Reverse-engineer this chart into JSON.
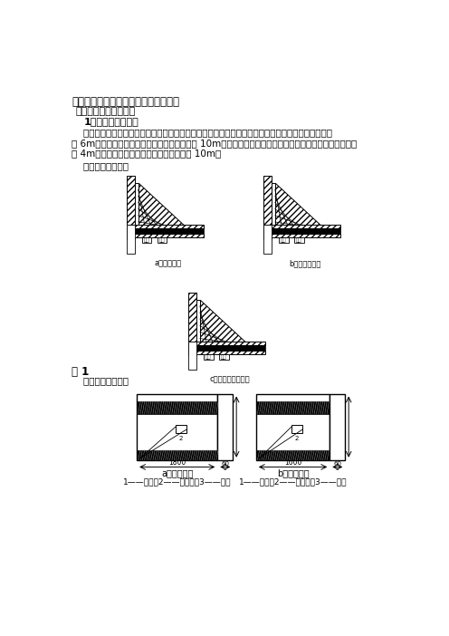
{
  "title1": "三、通风设施安全质量标准化达标规范",
  "title2": "（一）风门构筑标准：",
  "title3": "1、风门类型及规格",
  "para1": "    风门的构筑要依据巷道的断面及运输要求确定具体风门类型，构筑过车行人风门，两道风门间距要大",
  "para2": "于 6m，构筑过支架风门，两道风门间距要大于 10m，正、反向风门均要设置齐全，构筑防突风门，间距大",
  "para3": "于 4m，第二道风门距工作面回风巷不得小于 10m。",
  "para4": "    风门类型如下图：",
  "fig_label": "图 1",
  "fig_para": "    风门门型如下图：",
  "diag_a_label": "a）行人风门",
  "diag_b_label": "b）过支架风门",
  "diag_c_label": "c）防突风门（门）",
  "sub_a1": "a）通车风门",
  "sub_a2": "1——拉手；2——降压孔；3——门帘",
  "sub_b1": "b）行人风门",
  "sub_b2": "1——拉手；2——降压孔；3——门帘",
  "bg_color": "#ffffff",
  "text_color": "#000000",
  "dim_left_a": "1800",
  "dim_right_a": "60",
  "dim_left_b": "1600",
  "dim_right_b": "60"
}
